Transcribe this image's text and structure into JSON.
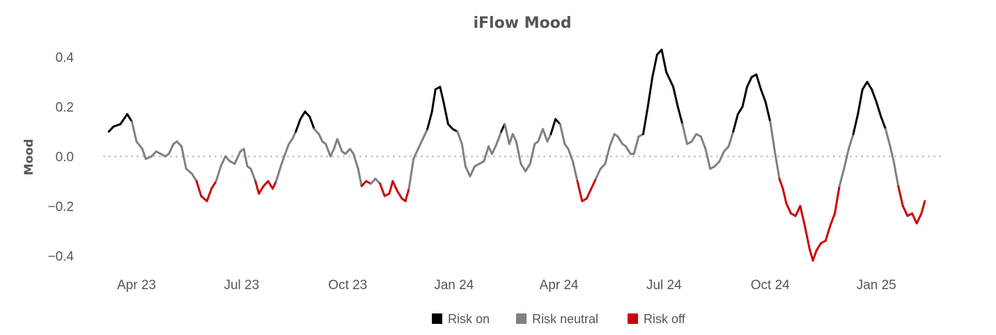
{
  "chart_data": {
    "type": "line",
    "title": "iFlow Mood",
    "xlabel": "",
    "ylabel": "Mood",
    "ylim": [
      -0.45,
      0.45
    ],
    "yticks": [
      {
        "value": 0.4,
        "label": "0.4"
      },
      {
        "value": 0.2,
        "label": "0.2"
      },
      {
        "value": 0.0,
        "label": "0.0"
      },
      {
        "value": -0.2,
        "label": "−0.2"
      },
      {
        "value": -0.4,
        "label": "−0.4"
      }
    ],
    "xlim": [
      "2023-03-01",
      "2025-04-01"
    ],
    "xticks": [
      {
        "date": "2023-04-01",
        "label": "Apr 23"
      },
      {
        "date": "2023-07-01",
        "label": "Jul 23"
      },
      {
        "date": "2023-10-01",
        "label": "Oct 23"
      },
      {
        "date": "2024-01-01",
        "label": "Jan 24"
      },
      {
        "date": "2024-04-01",
        "label": "Apr 24"
      },
      {
        "date": "2024-07-01",
        "label": "Jul 24"
      },
      {
        "date": "2024-10-01",
        "label": "Oct 24"
      },
      {
        "date": "2025-01-01",
        "label": "Jan 25"
      }
    ],
    "zero_line": {
      "value": 0.0,
      "style": "dotted"
    },
    "grid": false,
    "legend_position": "bottom",
    "legend": [
      {
        "label": "Risk on",
        "color": "#000000"
      },
      {
        "label": "Risk neutral",
        "color": "#808080"
      },
      {
        "label": "Risk off",
        "color": "#cc0000"
      }
    ],
    "colors": {
      "risk_on": "#000000",
      "risk_neutral": "#808080",
      "risk_off": "#cc0000"
    },
    "thresholds": {
      "risk_on_above": 0.1,
      "risk_off_below": -0.1
    },
    "series": [
      {
        "points": [
          [
            "2023-03-08",
            0.1
          ],
          [
            "2023-03-12",
            0.12
          ],
          [
            "2023-03-18",
            0.13
          ],
          [
            "2023-03-24",
            0.17
          ],
          [
            "2023-03-28",
            0.14
          ],
          [
            "2023-04-01",
            0.06
          ],
          [
            "2023-04-06",
            0.03
          ],
          [
            "2023-04-09",
            -0.01
          ],
          [
            "2023-04-14",
            0.0
          ],
          [
            "2023-04-18",
            0.02
          ],
          [
            "2023-04-22",
            0.01
          ],
          [
            "2023-04-26",
            0.0
          ],
          [
            "2023-04-29",
            0.01
          ],
          [
            "2023-05-03",
            0.05
          ],
          [
            "2023-05-06",
            0.06
          ],
          [
            "2023-05-10",
            0.04
          ],
          [
            "2023-05-14",
            -0.05
          ],
          [
            "2023-05-19",
            -0.07
          ],
          [
            "2023-05-23",
            -0.1
          ],
          [
            "2023-05-27",
            -0.16
          ],
          [
            "2023-06-01",
            -0.18
          ],
          [
            "2023-06-05",
            -0.13
          ],
          [
            "2023-06-09",
            -0.1
          ],
          [
            "2023-06-13",
            -0.04
          ],
          [
            "2023-06-17",
            0.0
          ],
          [
            "2023-06-21",
            -0.02
          ],
          [
            "2023-06-25",
            -0.03
          ],
          [
            "2023-06-30",
            0.02
          ],
          [
            "2023-07-03",
            0.03
          ],
          [
            "2023-07-06",
            -0.04
          ],
          [
            "2023-07-09",
            -0.05
          ],
          [
            "2023-07-13",
            -0.1
          ],
          [
            "2023-07-16",
            -0.15
          ],
          [
            "2023-07-20",
            -0.12
          ],
          [
            "2023-07-24",
            -0.1
          ],
          [
            "2023-07-28",
            -0.13
          ],
          [
            "2023-07-31",
            -0.1
          ],
          [
            "2023-08-04",
            -0.04
          ],
          [
            "2023-08-07",
            0.0
          ],
          [
            "2023-08-11",
            0.05
          ],
          [
            "2023-08-14",
            0.07
          ],
          [
            "2023-08-17",
            0.1
          ],
          [
            "2023-08-21",
            0.15
          ],
          [
            "2023-08-25",
            0.18
          ],
          [
            "2023-08-29",
            0.16
          ],
          [
            "2023-09-02",
            0.11
          ],
          [
            "2023-09-06",
            0.09
          ],
          [
            "2023-09-09",
            0.06
          ],
          [
            "2023-09-12",
            0.05
          ],
          [
            "2023-09-16",
            0.0
          ],
          [
            "2023-09-19",
            0.03
          ],
          [
            "2023-09-22",
            0.07
          ],
          [
            "2023-09-26",
            0.02
          ],
          [
            "2023-09-29",
            0.01
          ],
          [
            "2023-10-03",
            0.03
          ],
          [
            "2023-10-06",
            0.01
          ],
          [
            "2023-10-10",
            -0.05
          ],
          [
            "2023-10-13",
            -0.12
          ],
          [
            "2023-10-17",
            -0.1
          ],
          [
            "2023-10-21",
            -0.11
          ],
          [
            "2023-10-25",
            -0.09
          ],
          [
            "2023-10-29",
            -0.11
          ],
          [
            "2023-11-02",
            -0.16
          ],
          [
            "2023-11-06",
            -0.15
          ],
          [
            "2023-11-09",
            -0.1
          ],
          [
            "2023-11-13",
            -0.14
          ],
          [
            "2023-11-17",
            -0.17
          ],
          [
            "2023-11-20",
            -0.18
          ],
          [
            "2023-11-23",
            -0.13
          ],
          [
            "2023-11-27",
            -0.01
          ],
          [
            "2023-12-01",
            0.03
          ],
          [
            "2023-12-05",
            0.07
          ],
          [
            "2023-12-09",
            0.11
          ],
          [
            "2023-12-13",
            0.18
          ],
          [
            "2023-12-16",
            0.27
          ],
          [
            "2023-12-20",
            0.28
          ],
          [
            "2023-12-23",
            0.22
          ],
          [
            "2023-12-27",
            0.13
          ],
          [
            "2023-12-31",
            0.11
          ],
          [
            "2024-01-04",
            0.1
          ],
          [
            "2024-01-08",
            0.05
          ],
          [
            "2024-01-11",
            -0.04
          ],
          [
            "2024-01-15",
            -0.08
          ],
          [
            "2024-01-19",
            -0.04
          ],
          [
            "2024-01-23",
            -0.03
          ],
          [
            "2024-01-27",
            -0.02
          ],
          [
            "2024-01-31",
            0.04
          ],
          [
            "2024-02-03",
            0.01
          ],
          [
            "2024-02-07",
            0.05
          ],
          [
            "2024-02-11",
            0.1
          ],
          [
            "2024-02-14",
            0.13
          ],
          [
            "2024-02-18",
            0.05
          ],
          [
            "2024-02-21",
            0.09
          ],
          [
            "2024-02-24",
            0.06
          ],
          [
            "2024-02-28",
            -0.03
          ],
          [
            "2024-03-03",
            -0.06
          ],
          [
            "2024-03-07",
            -0.03
          ],
          [
            "2024-03-11",
            0.05
          ],
          [
            "2024-03-14",
            0.06
          ],
          [
            "2024-03-18",
            0.11
          ],
          [
            "2024-03-22",
            0.06
          ],
          [
            "2024-03-25",
            0.09
          ],
          [
            "2024-03-29",
            0.15
          ],
          [
            "2024-04-02",
            0.13
          ],
          [
            "2024-04-06",
            0.05
          ],
          [
            "2024-04-09",
            0.03
          ],
          [
            "2024-04-13",
            -0.02
          ],
          [
            "2024-04-17",
            -0.1
          ],
          [
            "2024-04-21",
            -0.18
          ],
          [
            "2024-04-25",
            -0.17
          ],
          [
            "2024-04-29",
            -0.13
          ],
          [
            "2024-05-03",
            -0.09
          ],
          [
            "2024-05-07",
            -0.05
          ],
          [
            "2024-05-11",
            -0.03
          ],
          [
            "2024-05-15",
            0.04
          ],
          [
            "2024-05-19",
            0.09
          ],
          [
            "2024-05-22",
            0.08
          ],
          [
            "2024-05-26",
            0.05
          ],
          [
            "2024-05-29",
            0.04
          ],
          [
            "2024-06-02",
            0.01
          ],
          [
            "2024-06-05",
            0.01
          ],
          [
            "2024-06-09",
            0.08
          ],
          [
            "2024-06-13",
            0.09
          ],
          [
            "2024-06-17",
            0.2
          ],
          [
            "2024-06-21",
            0.32
          ],
          [
            "2024-06-25",
            0.41
          ],
          [
            "2024-06-29",
            0.43
          ],
          [
            "2024-07-03",
            0.34
          ],
          [
            "2024-07-06",
            0.31
          ],
          [
            "2024-07-09",
            0.28
          ],
          [
            "2024-07-13",
            0.2
          ],
          [
            "2024-07-17",
            0.13
          ],
          [
            "2024-07-21",
            0.05
          ],
          [
            "2024-07-25",
            0.06
          ],
          [
            "2024-07-29",
            0.09
          ],
          [
            "2024-08-02",
            0.08
          ],
          [
            "2024-08-06",
            0.03
          ],
          [
            "2024-08-10",
            -0.05
          ],
          [
            "2024-08-14",
            -0.04
          ],
          [
            "2024-08-18",
            -0.02
          ],
          [
            "2024-08-22",
            0.02
          ],
          [
            "2024-08-26",
            0.04
          ],
          [
            "2024-08-30",
            0.1
          ],
          [
            "2024-09-03",
            0.17
          ],
          [
            "2024-09-07",
            0.2
          ],
          [
            "2024-09-11",
            0.28
          ],
          [
            "2024-09-15",
            0.32
          ],
          [
            "2024-09-19",
            0.33
          ],
          [
            "2024-09-23",
            0.27
          ],
          [
            "2024-09-27",
            0.22
          ],
          [
            "2024-10-01",
            0.14
          ],
          [
            "2024-10-05",
            0.02
          ],
          [
            "2024-10-09",
            -0.09
          ],
          [
            "2024-10-12",
            -0.13
          ],
          [
            "2024-10-15",
            -0.19
          ],
          [
            "2024-10-19",
            -0.23
          ],
          [
            "2024-10-23",
            -0.24
          ],
          [
            "2024-10-27",
            -0.2
          ],
          [
            "2024-10-31",
            -0.28
          ],
          [
            "2024-11-04",
            -0.37
          ],
          [
            "2024-11-07",
            -0.42
          ],
          [
            "2024-11-10",
            -0.38
          ],
          [
            "2024-11-14",
            -0.35
          ],
          [
            "2024-11-18",
            -0.34
          ],
          [
            "2024-11-22",
            -0.28
          ],
          [
            "2024-11-26",
            -0.23
          ],
          [
            "2024-11-30",
            -0.12
          ],
          [
            "2024-12-04",
            -0.05
          ],
          [
            "2024-12-08",
            0.03
          ],
          [
            "2024-12-12",
            0.09
          ],
          [
            "2024-12-16",
            0.17
          ],
          [
            "2024-12-20",
            0.27
          ],
          [
            "2024-12-24",
            0.3
          ],
          [
            "2024-12-28",
            0.27
          ],
          [
            "2025-01-01",
            0.22
          ],
          [
            "2025-01-05",
            0.16
          ],
          [
            "2025-01-09",
            0.11
          ],
          [
            "2025-01-13",
            0.04
          ],
          [
            "2025-01-16",
            -0.02
          ],
          [
            "2025-01-20",
            -0.12
          ],
          [
            "2025-01-24",
            -0.2
          ],
          [
            "2025-01-28",
            -0.24
          ],
          [
            "2025-02-01",
            -0.23
          ],
          [
            "2025-02-05",
            -0.27
          ],
          [
            "2025-02-09",
            -0.23
          ],
          [
            "2025-02-12",
            -0.18
          ]
        ]
      }
    ]
  }
}
